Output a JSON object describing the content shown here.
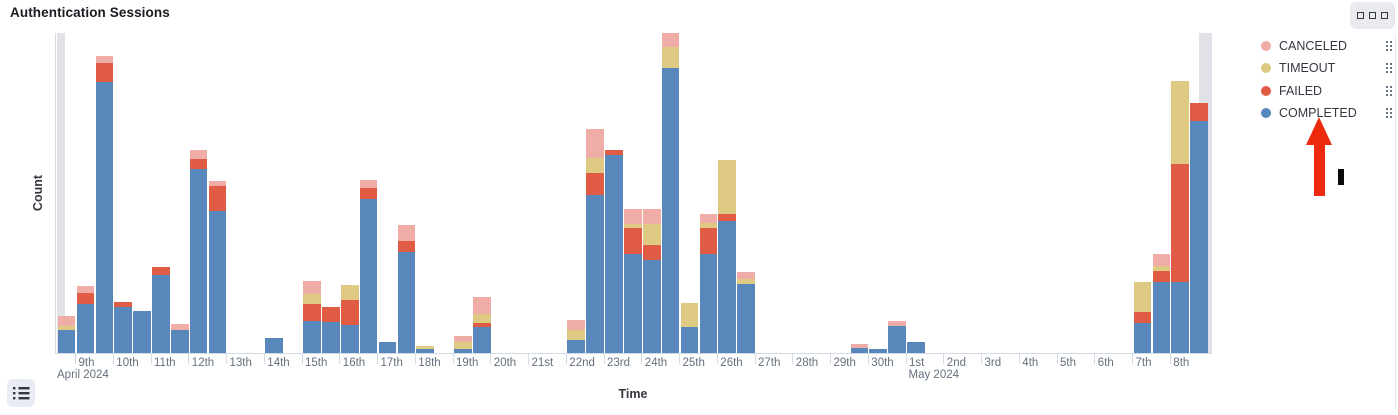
{
  "panel": {
    "title": "Authentication Sessions"
  },
  "toolbar": {
    "panel_options_icon": "three-boxes-menu-icon",
    "legend_toggle_icon": "list-icon"
  },
  "axes": {
    "y_label": "Count",
    "x_label": "Time"
  },
  "legend": {
    "position": "right",
    "items": [
      {
        "label": "CANCELED",
        "color": "#f0aca6"
      },
      {
        "label": "TIMEOUT",
        "color": "#deca82"
      },
      {
        "label": "FAILED",
        "color": "#e05c44"
      },
      {
        "label": "COMPLETED",
        "color": "#5787bb"
      }
    ]
  },
  "chart_data": {
    "type": "bar",
    "stacked": true,
    "title": "Authentication Sessions",
    "xlabel": "Time",
    "ylabel": "Count",
    "bucket_interval": "12h",
    "y_tick_labels_visible": false,
    "value_units": "relative (no numeric y-axis labels shown); values map 1:1 to pixels, plot max = 320",
    "grid": false,
    "legend_position": "right",
    "stack_order_bottom_to_top": [
      "completed",
      "failed",
      "timeout",
      "canceled"
    ],
    "partial_bucket_bands": {
      "left": true,
      "right": true
    },
    "x_ticks": [
      {
        "label": "9th",
        "sub": "April 2024",
        "sub_dx": -18
      },
      {
        "label": "10th"
      },
      {
        "label": "11th"
      },
      {
        "label": "12th"
      },
      {
        "label": "13th"
      },
      {
        "label": "14th"
      },
      {
        "label": "15th"
      },
      {
        "label": "16th"
      },
      {
        "label": "17th"
      },
      {
        "label": "18th"
      },
      {
        "label": "19th"
      },
      {
        "label": "20th"
      },
      {
        "label": "21st"
      },
      {
        "label": "22nd"
      },
      {
        "label": "23rd"
      },
      {
        "label": "24th"
      },
      {
        "label": "25th"
      },
      {
        "label": "26th"
      },
      {
        "label": "27th"
      },
      {
        "label": "28th"
      },
      {
        "label": "29th"
      },
      {
        "label": "30th"
      },
      {
        "label": "1st",
        "sub": "May 2024",
        "sub_dx": 3
      },
      {
        "label": "2nd"
      },
      {
        "label": "3rd"
      },
      {
        "label": "4th"
      },
      {
        "label": "5th"
      },
      {
        "label": "6th"
      },
      {
        "label": "7th"
      },
      {
        "label": "8th"
      }
    ],
    "bars": [
      {
        "bucket": "Apr 8 PM",
        "slot": 1,
        "completed": 23,
        "timeout": 4,
        "canceled": 10
      },
      {
        "bucket": "Apr 9 AM",
        "slot": 2,
        "completed": 49,
        "failed": 11,
        "canceled": 7
      },
      {
        "bucket": "Apr 9 PM",
        "slot": 3,
        "completed": 271,
        "failed": 19,
        "canceled": 7
      },
      {
        "bucket": "Apr 10 AM",
        "slot": 4,
        "completed": 46,
        "failed": 5
      },
      {
        "bucket": "Apr 10 PM",
        "slot": 5,
        "completed": 42
      },
      {
        "bucket": "Apr 11 AM",
        "slot": 6,
        "completed": 78,
        "failed": 8
      },
      {
        "bucket": "Apr 11 PM",
        "slot": 7,
        "completed": 23,
        "canceled": 6
      },
      {
        "bucket": "Apr 12 AM",
        "slot": 8,
        "completed": 184,
        "failed": 10,
        "canceled": 9
      },
      {
        "bucket": "Apr 12 PM",
        "slot": 9,
        "completed": 142,
        "failed": 25,
        "canceled": 5
      },
      {
        "bucket": "Apr 14 AM",
        "slot": 12,
        "completed": 15
      },
      {
        "bucket": "Apr 15 AM",
        "slot": 14,
        "completed": 32,
        "failed": 17,
        "timeout": 10,
        "canceled": 13
      },
      {
        "bucket": "Apr 15 PM",
        "slot": 15,
        "completed": 31,
        "failed": 15
      },
      {
        "bucket": "Apr 16 AM",
        "slot": 16,
        "completed": 28,
        "failed": 25,
        "timeout": 15
      },
      {
        "bucket": "Apr 16 PM",
        "slot": 17,
        "completed": 154,
        "failed": 11,
        "canceled": 8
      },
      {
        "bucket": "Apr 17 AM",
        "slot": 18,
        "completed": 11
      },
      {
        "bucket": "Apr 17 PM",
        "slot": 19,
        "completed": 101,
        "failed": 11,
        "canceled": 16
      },
      {
        "bucket": "Apr 18 AM",
        "slot": 20,
        "completed": 4,
        "timeout": 3
      },
      {
        "bucket": "Apr 19 AM",
        "slot": 22,
        "completed": 4,
        "timeout": 7,
        "canceled": 6
      },
      {
        "bucket": "Apr 19 PM",
        "slot": 23,
        "completed": 26,
        "failed": 4,
        "timeout": 9,
        "canceled": 17
      },
      {
        "bucket": "Apr 22 AM",
        "slot": 28,
        "completed": 13,
        "timeout": 10,
        "canceled": 10
      },
      {
        "bucket": "Apr 22 PM",
        "slot": 29,
        "completed": 158,
        "failed": 22,
        "timeout": 15,
        "canceled": 29
      },
      {
        "bucket": "Apr 23 AM",
        "slot": 30,
        "completed": 198,
        "failed": 5
      },
      {
        "bucket": "Apr 23 PM",
        "slot": 31,
        "completed": 99,
        "failed": 26,
        "timeout": 4,
        "canceled": 15
      },
      {
        "bucket": "Apr 24 AM",
        "slot": 32,
        "completed": 93,
        "failed": 15,
        "timeout": 21,
        "canceled": 15
      },
      {
        "bucket": "Apr 24 PM",
        "slot": 33,
        "completed": 285,
        "timeout": 21,
        "canceled": 14
      },
      {
        "bucket": "Apr 25 AM",
        "slot": 34,
        "completed": 26,
        "timeout": 24
      },
      {
        "bucket": "Apr 25 PM",
        "slot": 35,
        "completed": 99,
        "failed": 26,
        "timeout": 5,
        "canceled": 9
      },
      {
        "bucket": "Apr 26 AM",
        "slot": 36,
        "completed": 132,
        "failed": 7,
        "timeout": 54
      },
      {
        "bucket": "Apr 26 PM",
        "slot": 37,
        "completed": 69,
        "timeout": 5,
        "canceled": 7
      },
      {
        "bucket": "Apr 29 PM",
        "slot": 43,
        "completed": 5,
        "canceled": 4
      },
      {
        "bucket": "Apr 30 AM",
        "slot": 44,
        "completed": 4
      },
      {
        "bucket": "Apr 30 PM",
        "slot": 45,
        "completed": 27,
        "canceled": 5
      },
      {
        "bucket": "May 1 AM",
        "slot": 46,
        "completed": 11
      },
      {
        "bucket": "May 7 AM",
        "slot": 58,
        "completed": 30,
        "failed": 11,
        "timeout": 30
      },
      {
        "bucket": "May 7 PM",
        "slot": 59,
        "completed": 71,
        "failed": 11,
        "timeout": 5,
        "canceled": 12
      },
      {
        "bucket": "May 8 AM",
        "slot": 60,
        "completed": 71,
        "failed": 118,
        "timeout": 83
      },
      {
        "bucket": "May 8 PM",
        "slot": 61,
        "completed": 232,
        "failed": 18
      }
    ]
  },
  "annotations": {
    "red_arrow": {
      "shape": "up-arrow",
      "color": "#ee2a0e",
      "points_at": "COMPLETED legend item"
    },
    "black_marker": {
      "shape": "small vertical bar",
      "color": "#0a0a0a"
    }
  },
  "colors": {
    "axis_line": "#d3dae6",
    "tick_text": "#64707d",
    "partial_bucket_band": "#e1e2e7",
    "button_bg": "#e9eaee"
  }
}
